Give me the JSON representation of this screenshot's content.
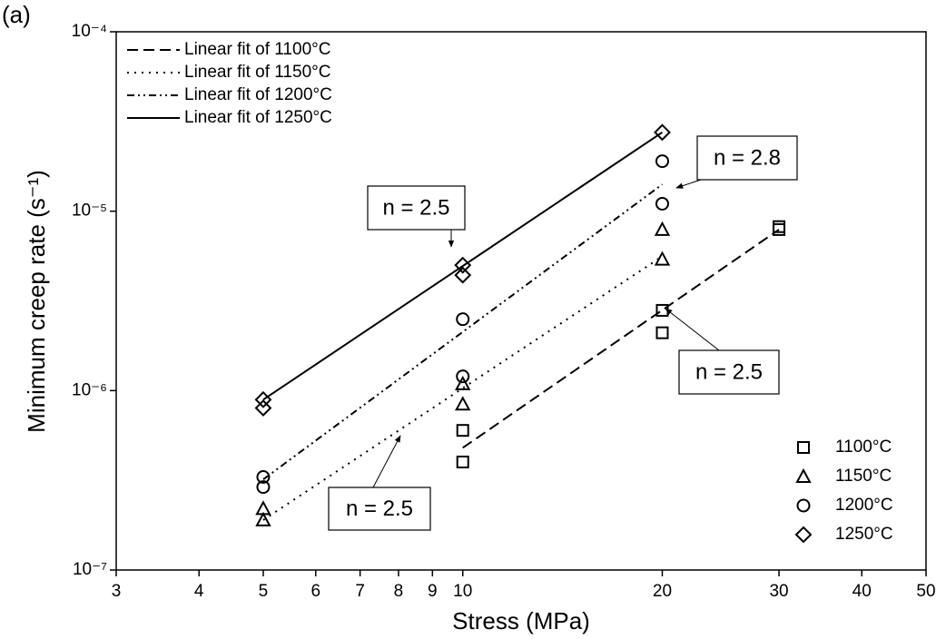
{
  "chart_data": {
    "type": "scatter",
    "panel_label": "(a)",
    "x_label": "Stress (MPa)",
    "y_label": "Minimum creep rate (s⁻¹)",
    "x_log": true,
    "y_log": true,
    "xlim": [
      3,
      50
    ],
    "ylim": [
      1e-07,
      0.0001
    ],
    "xticks": [
      3,
      4,
      5,
      6,
      7,
      8,
      9,
      10,
      20,
      30,
      40,
      50
    ],
    "yticks": [
      {
        "value": 1e-07,
        "label": "10⁻⁷"
      },
      {
        "value": 1e-06,
        "label": "10⁻⁶"
      },
      {
        "value": 1e-05,
        "label": "10⁻⁵"
      },
      {
        "value": 0.0001,
        "label": "10⁻⁴"
      }
    ],
    "series": [
      {
        "name": "1100°C",
        "marker": "square",
        "color": "#000000",
        "x": [
          10,
          10,
          20,
          20,
          30,
          30
        ],
        "values": [
          4e-07,
          6e-07,
          2.8e-06,
          2.1e-06,
          8.2e-06,
          7.9e-06
        ]
      },
      {
        "name": "1150°C",
        "marker": "triangle",
        "color": "#000000",
        "x": [
          5,
          5,
          10,
          10,
          20,
          20
        ],
        "values": [
          1.9e-07,
          2.2e-07,
          8.4e-07,
          1.09e-06,
          5.4e-06,
          7.9e-06
        ]
      },
      {
        "name": "1200°C",
        "marker": "circle",
        "color": "#000000",
        "x": [
          5,
          5,
          10,
          10,
          20,
          20
        ],
        "values": [
          3.3e-07,
          2.9e-07,
          2.5e-06,
          1.2e-06,
          1.9e-05,
          1.1e-05
        ]
      },
      {
        "name": "1250°C",
        "marker": "diamond",
        "color": "#000000",
        "x": [
          5,
          5,
          10,
          10,
          20
        ],
        "values": [
          8.9e-07,
          8e-07,
          5e-06,
          4.4e-06,
          2.75e-05
        ]
      }
    ],
    "fits": [
      {
        "name": "Linear fit of 1100°C",
        "dash": "12,6",
        "x": [
          10,
          30
        ],
        "values": [
          4.8e-07,
          7.9e-06
        ]
      },
      {
        "name": "Linear fit of 1150°C",
        "dash": "2,6",
        "x": [
          5,
          20
        ],
        "values": [
          1.9e-07,
          5.6e-06
        ]
      },
      {
        "name": "Linear fit of 1200°C",
        "dash": "8,4,2,4,2,4",
        "x": [
          5,
          20
        ],
        "values": [
          3.2e-07,
          1.41e-05
        ]
      },
      {
        "name": "Linear fit of 1250°C",
        "dash": "none",
        "x": [
          5,
          20
        ],
        "values": [
          8.9e-07,
          2.75e-05
        ]
      }
    ],
    "annotations": [
      "n = 2.5",
      "n = 2.8",
      "n = 2.5",
      "n = 2.5"
    ]
  }
}
